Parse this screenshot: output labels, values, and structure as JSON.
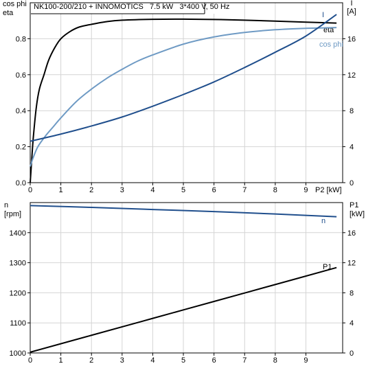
{
  "colors": {
    "black": "#000000",
    "dark_blue": "#1f4e8c",
    "light_blue": "#6e9ac4",
    "grid": "#d4d4d4"
  },
  "chart_data": [
    {
      "type": "line",
      "title": "NK100-200/210 + INNOMOTICS   7.5 kW   3*400 V, 50 Hz",
      "xlabel": "P2 [kW]",
      "x_ticks": [
        0,
        1,
        2,
        3,
        4,
        5,
        6,
        7,
        8,
        9
      ],
      "xlim": [
        0,
        10.2
      ],
      "left_axis": {
        "label_lines": [
          "cos phi",
          "eta"
        ],
        "ylim": [
          0,
          1
        ],
        "ticks": [
          0.0,
          0.2,
          0.4,
          0.6,
          0.8
        ],
        "tick_labels": [
          "0.0",
          "0.2",
          "0.4",
          "0.6",
          "0.8"
        ]
      },
      "right_axis": {
        "label_lines": [
          "I",
          "[A]"
        ],
        "ylim": [
          0,
          20
        ],
        "ticks": [
          0,
          4,
          8,
          12,
          16
        ],
        "tick_labels": [
          "0",
          "4",
          "8",
          "12",
          "16"
        ]
      },
      "grid": true,
      "series": [
        {
          "name": "eta",
          "axis": "left",
          "color": "#000000",
          "x": [
            0,
            0.05,
            0.1,
            0.2,
            0.3,
            0.45,
            0.6,
            0.8,
            1.0,
            1.3,
            1.6,
            2.0,
            2.5,
            3.0,
            4.0,
            5.0,
            6.0,
            7.0,
            8.0,
            9.0,
            10.0
          ],
          "y": [
            0.0,
            0.13,
            0.25,
            0.42,
            0.52,
            0.6,
            0.68,
            0.75,
            0.8,
            0.84,
            0.865,
            0.88,
            0.895,
            0.903,
            0.908,
            0.909,
            0.907,
            0.903,
            0.898,
            0.892,
            0.887
          ]
        },
        {
          "name": "cos phi",
          "axis": "left",
          "color": "#6e9ac4",
          "x": [
            0,
            0.1,
            0.25,
            0.5,
            0.75,
            1.0,
            1.5,
            2.0,
            2.5,
            3.0,
            3.5,
            4.0,
            5.0,
            6.0,
            7.0,
            8.0,
            9.0,
            10.0
          ],
          "y": [
            0.09,
            0.14,
            0.2,
            0.26,
            0.31,
            0.36,
            0.45,
            0.52,
            0.58,
            0.63,
            0.675,
            0.71,
            0.77,
            0.81,
            0.835,
            0.85,
            0.858,
            0.862
          ]
        },
        {
          "name": "I",
          "axis": "right",
          "color": "#1f4e8c",
          "x": [
            0,
            1,
            2,
            3,
            4,
            5,
            6,
            7,
            8,
            9,
            10
          ],
          "y": [
            4.6,
            5.4,
            6.3,
            7.3,
            8.5,
            9.8,
            11.2,
            12.8,
            14.5,
            16.3,
            18.7
          ]
        }
      ]
    },
    {
      "type": "line",
      "xlim": [
        0,
        10.2
      ],
      "x_ticks": [
        0,
        1,
        2,
        3,
        4,
        5,
        6,
        7,
        8,
        9
      ],
      "left_axis": {
        "label_lines": [
          "n",
          "[rpm]"
        ],
        "ylim": [
          1000,
          1500
        ],
        "ticks": [
          1000,
          1100,
          1200,
          1300,
          1400
        ],
        "tick_labels": [
          "1000",
          "1100",
          "1200",
          "1300",
          "1400"
        ]
      },
      "right_axis": {
        "label_lines": [
          "P1",
          "[kW]"
        ],
        "ylim": [
          0,
          20
        ],
        "ticks": [
          0,
          4,
          8,
          12,
          16
        ],
        "tick_labels": [
          "0",
          "4",
          "8",
          "12",
          "16"
        ]
      },
      "grid": true,
      "series": [
        {
          "name": "n",
          "axis": "left",
          "color": "#1f4e8c",
          "x": [
            0,
            2,
            4,
            6,
            8,
            10
          ],
          "y": [
            1490,
            1484,
            1477,
            1470,
            1462,
            1453
          ]
        },
        {
          "name": "P1",
          "axis": "right",
          "color": "#000000",
          "x": [
            0,
            2,
            4,
            6,
            8,
            10
          ],
          "y": [
            0.1,
            2.35,
            4.6,
            6.85,
            9.1,
            11.35
          ]
        }
      ]
    }
  ]
}
